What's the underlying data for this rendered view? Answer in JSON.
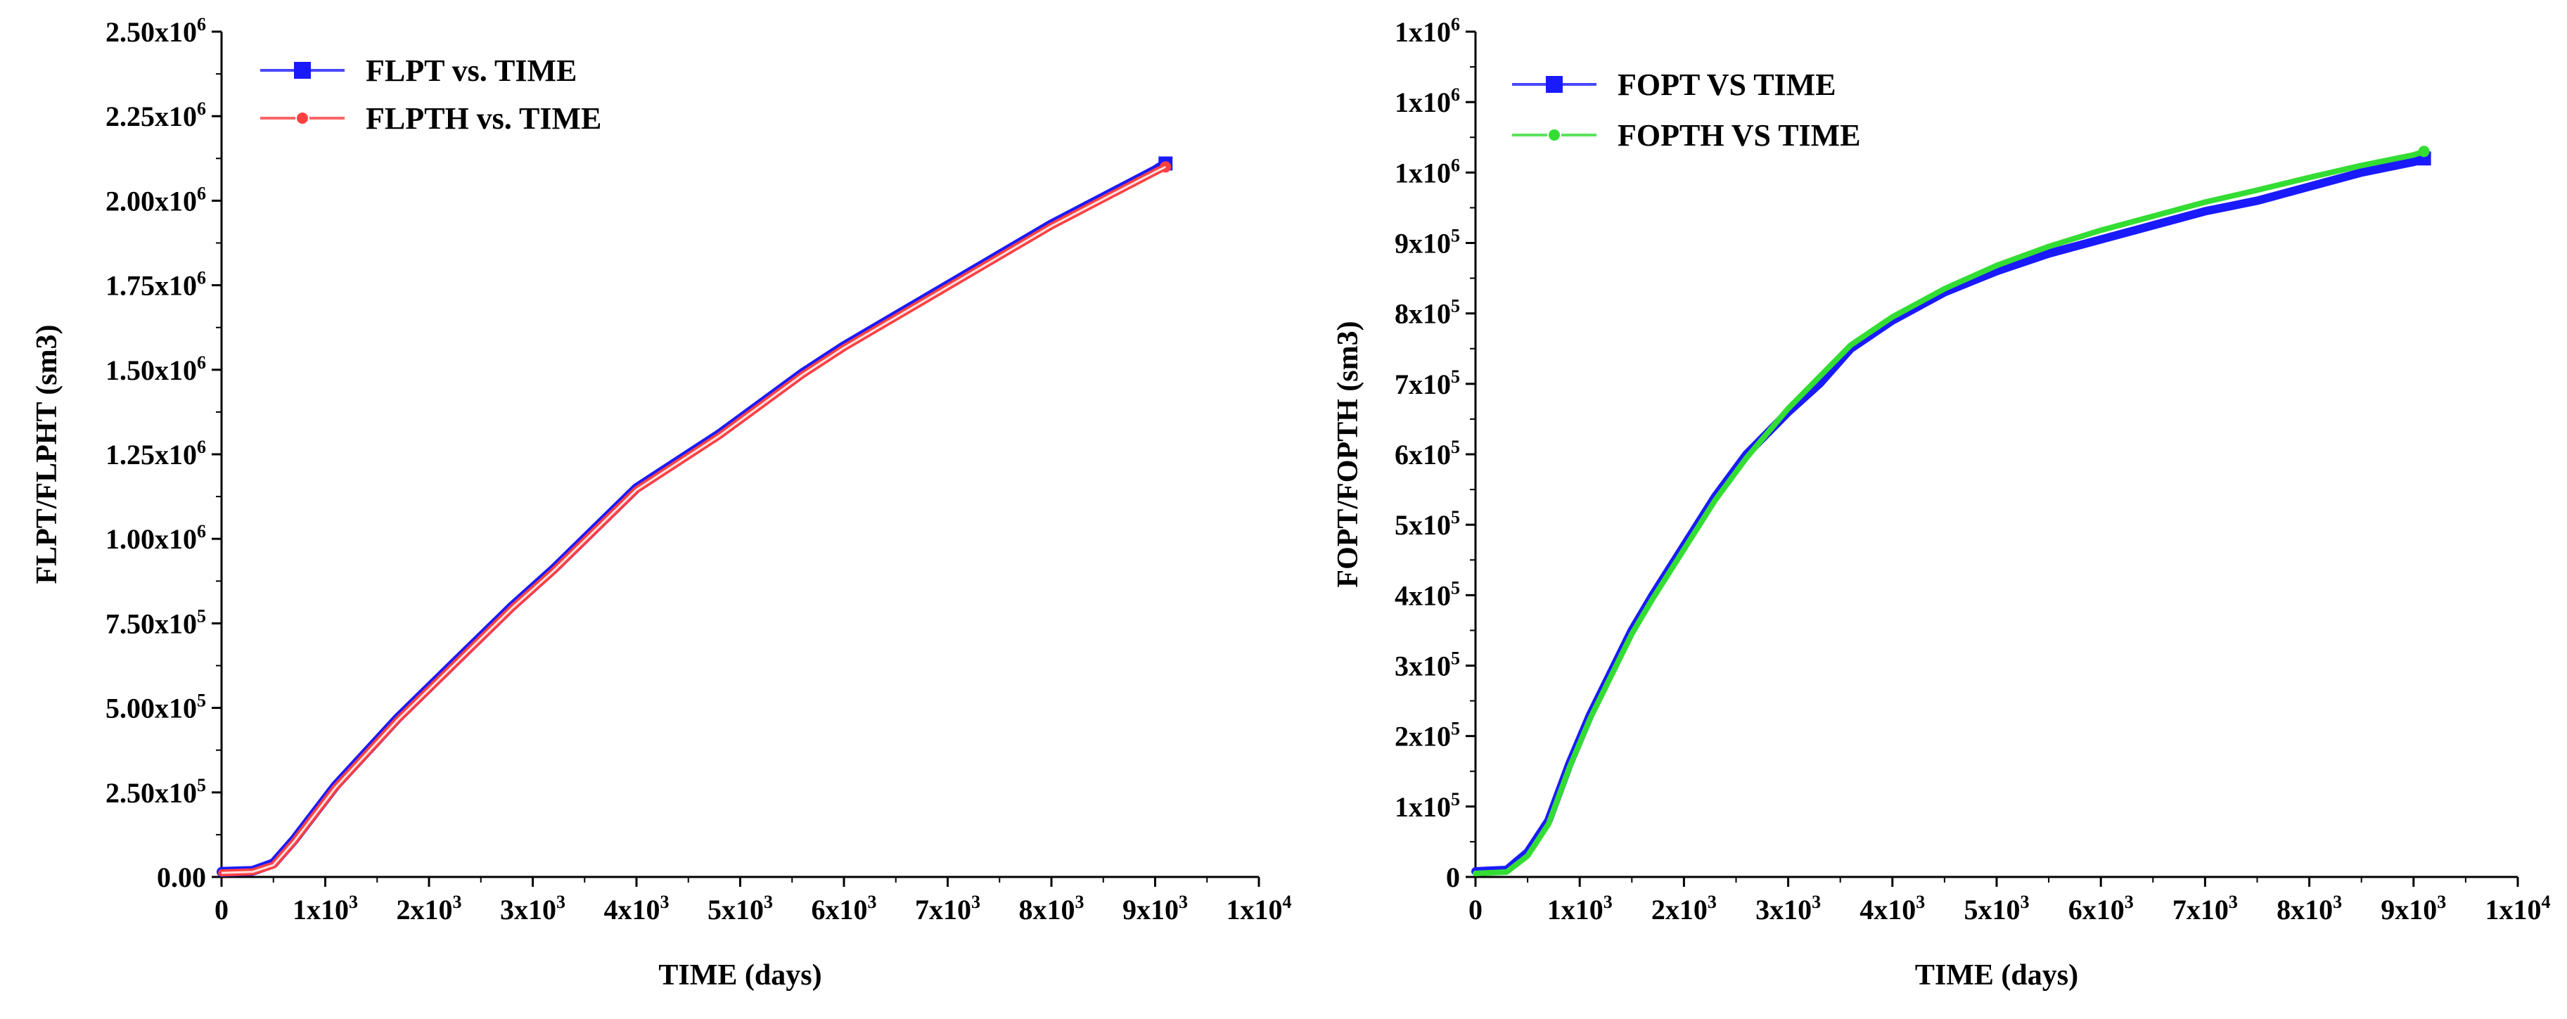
{
  "chart_data": [
    {
      "type": "line",
      "xlabel": "TIME (days)",
      "ylabel": "FLPT/FLPHT (sm3)",
      "xlim": [
        0,
        10000
      ],
      "ylim": [
        0,
        2500000
      ],
      "x_ticks": [
        {
          "value": 0,
          "base": "0",
          "exp": ""
        },
        {
          "value": 1000,
          "base": "1x10",
          "exp": "3"
        },
        {
          "value": 2000,
          "base": "2x10",
          "exp": "3"
        },
        {
          "value": 3000,
          "base": "3x10",
          "exp": "3"
        },
        {
          "value": 4000,
          "base": "4x10",
          "exp": "3"
        },
        {
          "value": 5000,
          "base": "5x10",
          "exp": "3"
        },
        {
          "value": 6000,
          "base": "6x10",
          "exp": "3"
        },
        {
          "value": 7000,
          "base": "7x10",
          "exp": "3"
        },
        {
          "value": 8000,
          "base": "8x10",
          "exp": "3"
        },
        {
          "value": 9000,
          "base": "9x10",
          "exp": "3"
        },
        {
          "value": 10000,
          "base": "1x10",
          "exp": "4"
        }
      ],
      "y_ticks": [
        {
          "value": 0,
          "base": "0.00",
          "exp": ""
        },
        {
          "value": 250000,
          "base": "2.50x10",
          "exp": "5"
        },
        {
          "value": 500000,
          "base": "5.00x10",
          "exp": "5"
        },
        {
          "value": 750000,
          "base": "7.50x10",
          "exp": "5"
        },
        {
          "value": 1000000,
          "base": "1.00x10",
          "exp": "6"
        },
        {
          "value": 1250000,
          "base": "1.25x10",
          "exp": "6"
        },
        {
          "value": 1500000,
          "base": "1.50x10",
          "exp": "6"
        },
        {
          "value": 1750000,
          "base": "1.75x10",
          "exp": "6"
        },
        {
          "value": 2000000,
          "base": "2.00x10",
          "exp": "6"
        },
        {
          "value": 2250000,
          "base": "2.25x10",
          "exp": "6"
        },
        {
          "value": 2500000,
          "base": "2.50x10",
          "exp": "6"
        }
      ],
      "series": [
        {
          "name": "FLPT vs. TIME",
          "color": "#1a1aff",
          "marker": "square",
          "x": [
            0,
            300,
            500,
            700,
            900,
            1100,
            1400,
            1700,
            2000,
            2400,
            2800,
            3200,
            3600,
            4000,
            4400,
            4800,
            5200,
            5600,
            6000,
            6500,
            7000,
            7500,
            8000,
            8500,
            9000,
            9100
          ],
          "y": [
            15000,
            18000,
            40000,
            110000,
            190000,
            270000,
            370000,
            470000,
            560000,
            680000,
            800000,
            910000,
            1030000,
            1150000,
            1230000,
            1310000,
            1400000,
            1490000,
            1570000,
            1660000,
            1750000,
            1840000,
            1930000,
            2010000,
            2090000,
            2110000
          ]
        },
        {
          "name": "FLPTH vs. TIME",
          "color": "#ff4040",
          "marker": "circle",
          "x": [
            0,
            300,
            500,
            700,
            900,
            1100,
            1400,
            1700,
            2000,
            2400,
            2800,
            3200,
            3600,
            4000,
            4400,
            4800,
            5200,
            5600,
            6000,
            6500,
            7000,
            7500,
            8000,
            8500,
            9000,
            9100
          ],
          "y": [
            12000,
            15000,
            35000,
            105000,
            185000,
            265000,
            365000,
            465000,
            555000,
            675000,
            795000,
            905000,
            1025000,
            1145000,
            1225000,
            1305000,
            1395000,
            1485000,
            1565000,
            1655000,
            1745000,
            1835000,
            1925000,
            2005000,
            2085000,
            2100000
          ]
        }
      ]
    },
    {
      "type": "line",
      "xlabel": "TIME (days)",
      "ylabel": "FOPT/FOPTH (sm3)",
      "xlim": [
        0,
        10000
      ],
      "ylim": [
        0,
        1200000
      ],
      "x_ticks": [
        {
          "value": 0,
          "base": "0",
          "exp": ""
        },
        {
          "value": 1000,
          "base": "1x10",
          "exp": "3"
        },
        {
          "value": 2000,
          "base": "2x10",
          "exp": "3"
        },
        {
          "value": 3000,
          "base": "3x10",
          "exp": "3"
        },
        {
          "value": 4000,
          "base": "4x10",
          "exp": "3"
        },
        {
          "value": 5000,
          "base": "5x10",
          "exp": "3"
        },
        {
          "value": 6000,
          "base": "6x10",
          "exp": "3"
        },
        {
          "value": 7000,
          "base": "7x10",
          "exp": "3"
        },
        {
          "value": 8000,
          "base": "8x10",
          "exp": "3"
        },
        {
          "value": 9000,
          "base": "9x10",
          "exp": "3"
        },
        {
          "value": 10000,
          "base": "1x10",
          "exp": "4"
        }
      ],
      "y_ticks": [
        {
          "value": 0,
          "base": "0",
          "exp": ""
        },
        {
          "value": 100000,
          "base": "1x10",
          "exp": "5"
        },
        {
          "value": 200000,
          "base": "2x10",
          "exp": "5"
        },
        {
          "value": 300000,
          "base": "3x10",
          "exp": "5"
        },
        {
          "value": 400000,
          "base": "4x10",
          "exp": "5"
        },
        {
          "value": 500000,
          "base": "5x10",
          "exp": "5"
        },
        {
          "value": 600000,
          "base": "6x10",
          "exp": "5"
        },
        {
          "value": 700000,
          "base": "7x10",
          "exp": "5"
        },
        {
          "value": 800000,
          "base": "8x10",
          "exp": "5"
        },
        {
          "value": 900000,
          "base": "9x10",
          "exp": "5"
        },
        {
          "value": 1000000,
          "base": "1x10",
          "exp": "6"
        },
        {
          "value": 1100000,
          "base": "1x10",
          "exp": "6"
        },
        {
          "value": 1200000,
          "base": "1x10",
          "exp": "6"
        }
      ],
      "series": [
        {
          "name": "FOPT VS TIME",
          "color": "#1a1aff",
          "marker": "square",
          "x": [
            0,
            300,
            500,
            700,
            900,
            1100,
            1300,
            1500,
            1700,
            2000,
            2300,
            2600,
            3000,
            3300,
            3600,
            4000,
            4500,
            5000,
            5500,
            6000,
            6500,
            7000,
            7500,
            8000,
            8500,
            9000,
            9100
          ],
          "y": [
            8000,
            10000,
            35000,
            80000,
            160000,
            230000,
            290000,
            350000,
            400000,
            470000,
            540000,
            600000,
            660000,
            700000,
            750000,
            790000,
            830000,
            860000,
            885000,
            905000,
            925000,
            945000,
            960000,
            980000,
            1000000,
            1015000,
            1020000
          ]
        },
        {
          "name": "FOPTH VS TIME",
          "color": "#33dd33",
          "marker": "circle",
          "x": [
            0,
            300,
            500,
            700,
            900,
            1100,
            1300,
            1500,
            1700,
            2000,
            2300,
            2600,
            3000,
            3300,
            3600,
            4000,
            4500,
            5000,
            5500,
            6000,
            6500,
            7000,
            7500,
            8000,
            8500,
            9000,
            9100
          ],
          "y": [
            5000,
            7000,
            30000,
            75000,
            155000,
            225000,
            285000,
            345000,
            395000,
            465000,
            535000,
            595000,
            665000,
            710000,
            755000,
            795000,
            835000,
            868000,
            895000,
            918000,
            938000,
            958000,
            975000,
            993000,
            1010000,
            1025000,
            1030000
          ]
        }
      ]
    }
  ]
}
